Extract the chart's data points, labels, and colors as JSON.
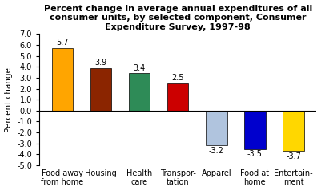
{
  "categories": [
    "Food away\nfrom home",
    "Housing",
    "Health\ncare",
    "Transpor-\ntation",
    "Apparel",
    "Food at\nhome",
    "Entertain-\nment"
  ],
  "values": [
    5.7,
    3.9,
    3.4,
    2.5,
    -3.2,
    -3.5,
    -3.7
  ],
  "bar_colors": [
    "#FFA500",
    "#8B2500",
    "#2E8B57",
    "#CC0000",
    "#B0C4DE",
    "#0000CD",
    "#FFD700"
  ],
  "title": "Percent change in average annual expenditures of all\nconsumer units, by selected component, Consumer\nExpenditure Survey, 1997-98",
  "ylabel": "Percent change",
  "ylim": [
    -5.0,
    7.0
  ],
  "yticks": [
    -5.0,
    -4.0,
    -3.0,
    -2.0,
    -1.0,
    0.0,
    1.0,
    2.0,
    3.0,
    4.0,
    5.0,
    6.0,
    7.0
  ],
  "ytick_labels": [
    "-5.0",
    "-4.0",
    "-3.0",
    "-2.0",
    "-1.0",
    "0.0",
    "1.0",
    "2.0",
    "3.0",
    "4.0",
    "5.0",
    "6.0",
    "7.0"
  ],
  "background_color": "#ffffff",
  "bar_edge_color": "#000000",
  "value_label_fontsize": 7,
  "tick_fontsize": 7,
  "title_fontsize": 8,
  "ylabel_fontsize": 7.5,
  "xtick_fontsize": 7
}
